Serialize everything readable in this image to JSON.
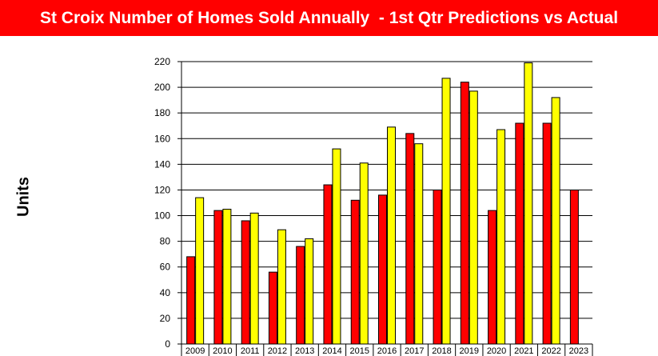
{
  "header": {
    "title": "St Croix Number of Homes Sold Annually  - 1st Qtr Predictions vs Actual"
  },
  "colors": {
    "title_bar": "#ff0000",
    "title_text": "#ffffff",
    "series_red": "#ff0000",
    "series_yellow": "#ffff00"
  },
  "chart_data": {
    "type": "bar",
    "title": "St Croix Number of Homes Sold Annually  - 1st Qtr Predictions vs Actual",
    "xlabel": "",
    "ylabel": "Units",
    "categories": [
      "2009",
      "2010",
      "2011",
      "2012",
      "2013",
      "2014",
      "2015",
      "2016",
      "2017",
      "2018",
      "2019",
      "2020",
      "2021",
      "2022",
      "2023"
    ],
    "ylim": [
      0,
      220
    ],
    "yticks": [
      0,
      20,
      40,
      60,
      80,
      100,
      120,
      140,
      160,
      180,
      200,
      220
    ],
    "grid": true,
    "legend": "none",
    "series": [
      {
        "color": "#ff0000",
        "values": [
          68,
          104,
          96,
          56,
          76,
          124,
          112,
          116,
          164,
          120,
          204,
          104,
          172,
          172,
          120
        ]
      },
      {
        "color": "#ffff00",
        "values": [
          114,
          105,
          102,
          89,
          82,
          152,
          141,
          169,
          156,
          207,
          197,
          167,
          219,
          192,
          null
        ]
      }
    ]
  }
}
